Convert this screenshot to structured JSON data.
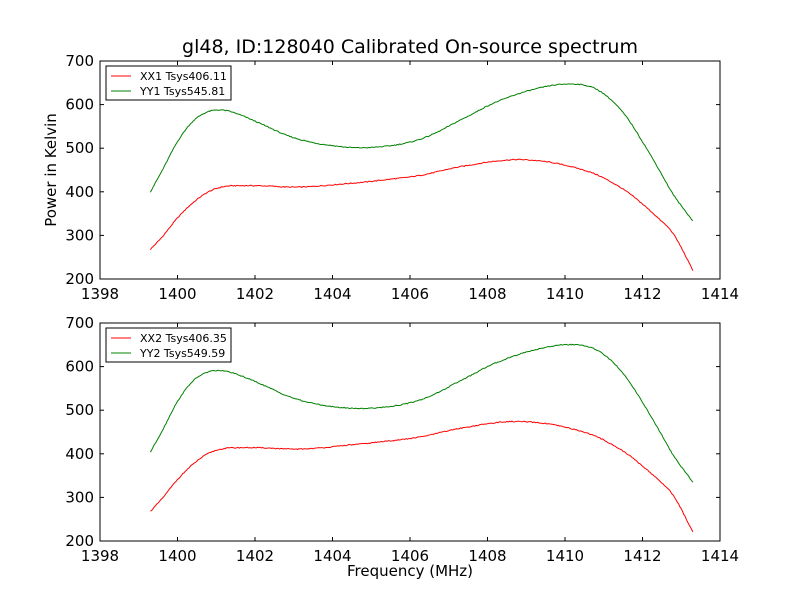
{
  "title": "gl48, ID:128040 Calibrated On-source spectrum",
  "xlabel": "Frequency (MHz)",
  "ylabel": "Power in Kelvin",
  "chart_data": [
    {
      "type": "line",
      "xlim": [
        1398,
        1414
      ],
      "ylim": [
        200,
        700
      ],
      "xticks": [
        1398,
        1400,
        1402,
        1404,
        1406,
        1408,
        1410,
        1412,
        1414
      ],
      "yticks": [
        200,
        300,
        400,
        500,
        600,
        700
      ],
      "ylabel": "Power in Kelvin",
      "legend": "top-left",
      "grid": false,
      "series": [
        {
          "name": "XX1 Tsys406.11",
          "color": "#ff0000",
          "x": [
            1399.3,
            1399.6,
            1400.0,
            1400.4,
            1400.8,
            1401.2,
            1401.6,
            1402.0,
            1402.4,
            1402.8,
            1403.2,
            1403.6,
            1404.0,
            1404.4,
            1404.8,
            1405.2,
            1405.6,
            1406.0,
            1406.4,
            1406.8,
            1407.2,
            1407.6,
            1408.0,
            1408.4,
            1408.8,
            1409.2,
            1409.6,
            1410.0,
            1410.4,
            1410.8,
            1411.2,
            1411.6,
            1412.0,
            1412.4,
            1412.8,
            1413.3
          ],
          "y": [
            268,
            296,
            340,
            375,
            400,
            412,
            414,
            414,
            413,
            411,
            411,
            413,
            416,
            419,
            422,
            426,
            430,
            434,
            440,
            448,
            456,
            462,
            468,
            472,
            474,
            472,
            468,
            461,
            452,
            440,
            422,
            400,
            372,
            340,
            303,
            220
          ]
        },
        {
          "name": "YY1 Tsys545.81",
          "color": "#008000",
          "x": [
            1399.3,
            1399.6,
            1400.0,
            1400.4,
            1400.8,
            1401.2,
            1401.6,
            1402.0,
            1402.4,
            1402.8,
            1403.2,
            1403.6,
            1404.0,
            1404.4,
            1404.8,
            1405.2,
            1405.6,
            1406.0,
            1406.4,
            1406.8,
            1407.2,
            1407.6,
            1408.0,
            1408.4,
            1408.8,
            1409.2,
            1409.6,
            1410.0,
            1410.4,
            1410.8,
            1411.2,
            1411.6,
            1412.0,
            1412.4,
            1412.8,
            1413.3
          ],
          "y": [
            400,
            448,
            515,
            562,
            584,
            587,
            577,
            562,
            546,
            530,
            519,
            511,
            506,
            502,
            501,
            503,
            507,
            514,
            525,
            541,
            560,
            578,
            597,
            612,
            625,
            635,
            643,
            647,
            646,
            636,
            610,
            570,
            515,
            455,
            393,
            333
          ]
        }
      ]
    },
    {
      "type": "line",
      "xlim": [
        1398,
        1414
      ],
      "ylim": [
        200,
        700
      ],
      "xticks": [
        1398,
        1400,
        1402,
        1404,
        1406,
        1408,
        1410,
        1412,
        1414
      ],
      "yticks": [
        200,
        300,
        400,
        500,
        600,
        700
      ],
      "xlabel": "Frequency (MHz)",
      "legend": "top-left",
      "grid": false,
      "series": [
        {
          "name": "XX2 Tsys406.35",
          "color": "#ff0000",
          "x": [
            1399.3,
            1399.6,
            1400.0,
            1400.4,
            1400.8,
            1401.2,
            1401.6,
            1402.0,
            1402.4,
            1402.8,
            1403.2,
            1403.6,
            1404.0,
            1404.4,
            1404.8,
            1405.2,
            1405.6,
            1406.0,
            1406.4,
            1406.8,
            1407.2,
            1407.6,
            1408.0,
            1408.4,
            1408.8,
            1409.2,
            1409.6,
            1410.0,
            1410.4,
            1410.8,
            1411.2,
            1411.6,
            1412.0,
            1412.4,
            1412.8,
            1413.3
          ],
          "y": [
            268,
            297,
            341,
            376,
            401,
            412,
            414,
            414,
            413,
            411,
            411,
            413,
            416,
            420,
            423,
            427,
            431,
            435,
            441,
            449,
            457,
            463,
            469,
            473,
            474,
            472,
            468,
            461,
            452,
            440,
            422,
            400,
            372,
            341,
            304,
            221
          ]
        },
        {
          "name": "YY2 Tsys549.59",
          "color": "#008000",
          "x": [
            1399.3,
            1399.6,
            1400.0,
            1400.4,
            1400.8,
            1401.2,
            1401.6,
            1402.0,
            1402.4,
            1402.8,
            1403.2,
            1403.6,
            1404.0,
            1404.4,
            1404.8,
            1405.2,
            1405.6,
            1406.0,
            1406.4,
            1406.8,
            1407.2,
            1407.6,
            1408.0,
            1408.4,
            1408.8,
            1409.2,
            1409.6,
            1410.0,
            1410.4,
            1410.8,
            1411.2,
            1411.6,
            1412.0,
            1412.4,
            1412.8,
            1413.3
          ],
          "y": [
            404,
            452,
            520,
            567,
            588,
            590,
            580,
            566,
            550,
            534,
            522,
            514,
            508,
            505,
            504,
            506,
            510,
            517,
            528,
            544,
            563,
            581,
            600,
            615,
            628,
            638,
            646,
            650,
            649,
            639,
            613,
            573,
            518,
            458,
            396,
            335
          ]
        }
      ]
    }
  ]
}
